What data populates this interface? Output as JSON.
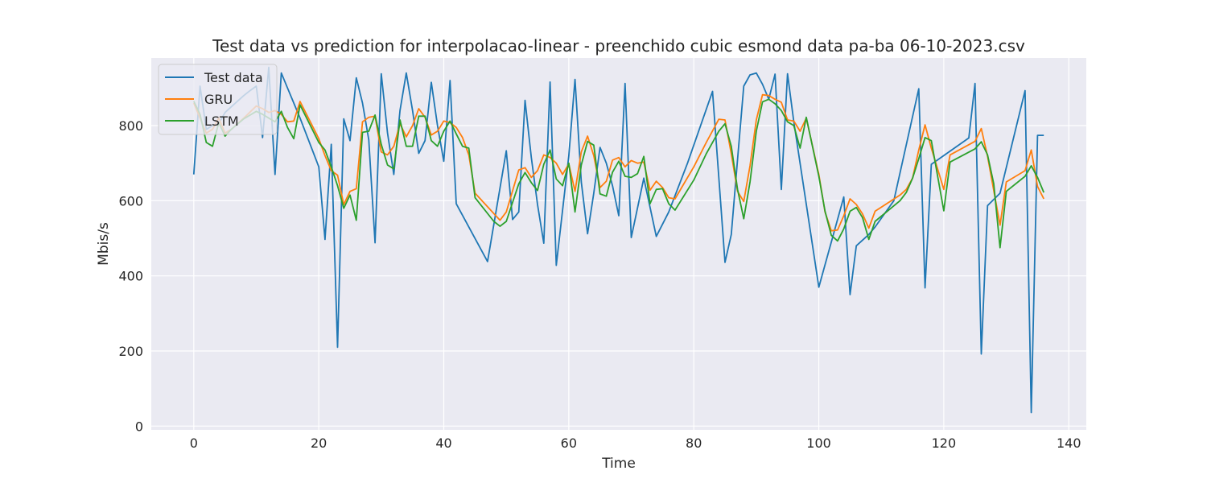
{
  "chart_data": {
    "type": "line",
    "title": "Test data vs prediction for interpolacao-linear - preenchido cubic esmond data pa-ba 06-10-2023.csv",
    "xlabel": "Time",
    "ylabel": "Mbis/s",
    "xlim": [
      -6.8,
      142.8
    ],
    "ylim": [
      -10,
      980
    ],
    "xticks": [
      0,
      20,
      40,
      60,
      80,
      100,
      120,
      140
    ],
    "yticks": [
      0,
      200,
      400,
      600,
      800
    ],
    "grid": true,
    "legend_position": "top-left",
    "series": [
      {
        "name": "Test data",
        "color": "#1f77b4",
        "points": [
          [
            0,
            670
          ],
          [
            1,
            905
          ],
          [
            2,
            790
          ],
          [
            3,
            800
          ],
          [
            4,
            805
          ],
          [
            5,
            835
          ],
          [
            6,
            850
          ],
          [
            7,
            865
          ],
          [
            8,
            880
          ],
          [
            9,
            893
          ],
          [
            10,
            905
          ],
          [
            11,
            768
          ],
          [
            12,
            955
          ],
          [
            13,
            670
          ],
          [
            14,
            940
          ],
          [
            15,
            900
          ],
          [
            16,
            860
          ],
          [
            17,
            820
          ],
          [
            20,
            690
          ],
          [
            21,
            497
          ],
          [
            22,
            750
          ],
          [
            23,
            210
          ],
          [
            24,
            818
          ],
          [
            25,
            760
          ],
          [
            26,
            927
          ],
          [
            27,
            860
          ],
          [
            28,
            762
          ],
          [
            29,
            488
          ],
          [
            30,
            938
          ],
          [
            31,
            780
          ],
          [
            32,
            670
          ],
          [
            33,
            840
          ],
          [
            34,
            940
          ],
          [
            35,
            840
          ],
          [
            36,
            726
          ],
          [
            37,
            760
          ],
          [
            38,
            915
          ],
          [
            39,
            800
          ],
          [
            40,
            705
          ],
          [
            41,
            920
          ],
          [
            42,
            592
          ],
          [
            47,
            438
          ],
          [
            50,
            733
          ],
          [
            51,
            550
          ],
          [
            52,
            570
          ],
          [
            53,
            867
          ],
          [
            54,
            715
          ],
          [
            55,
            590
          ],
          [
            56,
            487
          ],
          [
            57,
            916
          ],
          [
            58,
            428
          ],
          [
            60,
            720
          ],
          [
            61,
            923
          ],
          [
            62,
            650
          ],
          [
            63,
            512
          ],
          [
            64,
            620
          ],
          [
            65,
            742
          ],
          [
            66,
            700
          ],
          [
            67,
            640
          ],
          [
            68,
            560
          ],
          [
            69,
            912
          ],
          [
            70,
            502
          ],
          [
            72,
            660
          ],
          [
            74,
            505
          ],
          [
            76,
            570
          ],
          [
            79,
            700
          ],
          [
            83,
            891
          ],
          [
            85,
            436
          ],
          [
            86,
            510
          ],
          [
            87,
            710
          ],
          [
            88,
            905
          ],
          [
            89,
            935
          ],
          [
            90,
            940
          ],
          [
            91,
            910
          ],
          [
            92,
            870
          ],
          [
            93,
            937
          ],
          [
            94,
            630
          ],
          [
            95,
            938
          ],
          [
            96,
            810
          ],
          [
            100,
            370
          ],
          [
            104,
            610
          ],
          [
            105,
            350
          ],
          [
            106,
            480
          ],
          [
            108,
            510
          ],
          [
            109,
            530
          ],
          [
            112,
            600
          ],
          [
            116,
            898
          ],
          [
            117,
            368
          ],
          [
            118,
            697
          ],
          [
            124,
            767
          ],
          [
            125,
            912
          ],
          [
            126,
            192
          ],
          [
            127,
            587
          ],
          [
            129,
            620
          ],
          [
            133,
            893
          ],
          [
            134,
            36
          ],
          [
            135,
            774
          ],
          [
            136,
            774
          ]
        ]
      },
      {
        "name": "GRU",
        "color": "#ff7f0e",
        "points": [
          [
            0,
            860
          ],
          [
            2,
            780
          ],
          [
            3,
            790
          ],
          [
            4,
            820
          ],
          [
            5,
            780
          ],
          [
            6,
            790
          ],
          [
            8,
            820
          ],
          [
            10,
            852
          ],
          [
            11,
            845
          ],
          [
            12,
            835
          ],
          [
            13,
            840
          ],
          [
            14,
            830
          ],
          [
            15,
            810
          ],
          [
            16,
            812
          ],
          [
            17,
            864
          ],
          [
            20,
            765
          ],
          [
            21,
            720
          ],
          [
            22,
            680
          ],
          [
            23,
            668
          ],
          [
            24,
            590
          ],
          [
            25,
            625
          ],
          [
            26,
            632
          ],
          [
            27,
            810
          ],
          [
            28,
            822
          ],
          [
            29,
            825
          ],
          [
            30,
            730
          ],
          [
            31,
            722
          ],
          [
            32,
            745
          ],
          [
            33,
            805
          ],
          [
            34,
            770
          ],
          [
            35,
            800
          ],
          [
            36,
            845
          ],
          [
            37,
            822
          ],
          [
            38,
            775
          ],
          [
            39,
            785
          ],
          [
            40,
            812
          ],
          [
            41,
            808
          ],
          [
            42,
            795
          ],
          [
            43,
            768
          ],
          [
            44,
            722
          ],
          [
            45,
            620
          ],
          [
            49,
            548
          ],
          [
            50,
            570
          ],
          [
            52,
            682
          ],
          [
            53,
            688
          ],
          [
            54,
            662
          ],
          [
            55,
            680
          ],
          [
            56,
            722
          ],
          [
            57,
            715
          ],
          [
            58,
            700
          ],
          [
            59,
            670
          ],
          [
            60,
            698
          ],
          [
            61,
            625
          ],
          [
            62,
            730
          ],
          [
            63,
            772
          ],
          [
            64,
            720
          ],
          [
            65,
            635
          ],
          [
            66,
            652
          ],
          [
            67,
            708
          ],
          [
            68,
            715
          ],
          [
            69,
            690
          ],
          [
            70,
            707
          ],
          [
            71,
            700
          ],
          [
            72,
            703
          ],
          [
            73,
            628
          ],
          [
            74,
            652
          ],
          [
            75,
            635
          ],
          [
            76,
            608
          ],
          [
            77,
            605
          ],
          [
            80,
            690
          ],
          [
            82,
            755
          ],
          [
            84,
            817
          ],
          [
            85,
            815
          ],
          [
            86,
            725
          ],
          [
            87,
            625
          ],
          [
            88,
            598
          ],
          [
            89,
            693
          ],
          [
            90,
            815
          ],
          [
            91,
            882
          ],
          [
            92,
            880
          ],
          [
            93,
            870
          ],
          [
            94,
            862
          ],
          [
            95,
            815
          ],
          [
            96,
            812
          ],
          [
            97,
            785
          ],
          [
            98,
            820
          ],
          [
            100,
            670
          ],
          [
            101,
            570
          ],
          [
            102,
            520
          ],
          [
            103,
            522
          ],
          [
            104,
            560
          ],
          [
            105,
            605
          ],
          [
            106,
            590
          ],
          [
            107,
            565
          ],
          [
            108,
            527
          ],
          [
            109,
            572
          ],
          [
            113,
            615
          ],
          [
            114,
            630
          ],
          [
            115,
            660
          ],
          [
            116,
            735
          ],
          [
            117,
            802
          ],
          [
            118,
            740
          ],
          [
            120,
            630
          ],
          [
            121,
            722
          ],
          [
            125,
            758
          ],
          [
            126,
            792
          ],
          [
            127,
            718
          ],
          [
            129,
            535
          ],
          [
            130,
            650
          ],
          [
            133,
            680
          ],
          [
            134,
            735
          ],
          [
            135,
            638
          ],
          [
            136,
            605
          ]
        ]
      },
      {
        "name": "LSTM",
        "color": "#2ca02c",
        "points": [
          [
            0,
            865
          ],
          [
            1,
            830
          ],
          [
            2,
            755
          ],
          [
            3,
            745
          ],
          [
            4,
            808
          ],
          [
            5,
            772
          ],
          [
            6,
            790
          ],
          [
            8,
            818
          ],
          [
            10,
            838
          ],
          [
            11,
            830
          ],
          [
            12,
            820
          ],
          [
            13,
            810
          ],
          [
            14,
            838
          ],
          [
            15,
            795
          ],
          [
            16,
            765
          ],
          [
            17,
            855
          ],
          [
            20,
            755
          ],
          [
            21,
            735
          ],
          [
            22,
            690
          ],
          [
            23,
            640
          ],
          [
            24,
            580
          ],
          [
            25,
            615
          ],
          [
            26,
            548
          ],
          [
            27,
            782
          ],
          [
            28,
            785
          ],
          [
            29,
            828
          ],
          [
            30,
            750
          ],
          [
            31,
            695
          ],
          [
            32,
            685
          ],
          [
            33,
            815
          ],
          [
            34,
            745
          ],
          [
            35,
            745
          ],
          [
            36,
            825
          ],
          [
            37,
            825
          ],
          [
            38,
            760
          ],
          [
            39,
            745
          ],
          [
            40,
            785
          ],
          [
            41,
            812
          ],
          [
            42,
            778
          ],
          [
            43,
            745
          ],
          [
            44,
            740
          ],
          [
            45,
            608
          ],
          [
            48,
            545
          ],
          [
            49,
            532
          ],
          [
            50,
            545
          ],
          [
            52,
            645
          ],
          [
            53,
            675
          ],
          [
            54,
            648
          ],
          [
            55,
            627
          ],
          [
            56,
            697
          ],
          [
            57,
            735
          ],
          [
            58,
            658
          ],
          [
            59,
            640
          ],
          [
            60,
            700
          ],
          [
            61,
            570
          ],
          [
            62,
            695
          ],
          [
            63,
            758
          ],
          [
            64,
            748
          ],
          [
            65,
            618
          ],
          [
            66,
            612
          ],
          [
            67,
            676
          ],
          [
            68,
            705
          ],
          [
            69,
            665
          ],
          [
            70,
            662
          ],
          [
            71,
            672
          ],
          [
            72,
            718
          ],
          [
            73,
            592
          ],
          [
            74,
            630
          ],
          [
            75,
            632
          ],
          [
            76,
            592
          ],
          [
            77,
            575
          ],
          [
            80,
            655
          ],
          [
            82,
            725
          ],
          [
            84,
            785
          ],
          [
            85,
            805
          ],
          [
            86,
            745
          ],
          [
            87,
            630
          ],
          [
            88,
            552
          ],
          [
            89,
            650
          ],
          [
            90,
            785
          ],
          [
            91,
            863
          ],
          [
            92,
            870
          ],
          [
            93,
            858
          ],
          [
            94,
            840
          ],
          [
            95,
            810
          ],
          [
            96,
            800
          ],
          [
            97,
            740
          ],
          [
            98,
            822
          ],
          [
            100,
            665
          ],
          [
            101,
            572
          ],
          [
            102,
            508
          ],
          [
            103,
            493
          ],
          [
            104,
            525
          ],
          [
            105,
            572
          ],
          [
            106,
            582
          ],
          [
            107,
            555
          ],
          [
            108,
            497
          ],
          [
            109,
            545
          ],
          [
            113,
            600
          ],
          [
            114,
            622
          ],
          [
            115,
            660
          ],
          [
            116,
            712
          ],
          [
            117,
            768
          ],
          [
            118,
            760
          ],
          [
            120,
            573
          ],
          [
            121,
            703
          ],
          [
            125,
            738
          ],
          [
            126,
            757
          ],
          [
            127,
            722
          ],
          [
            128,
            645
          ],
          [
            129,
            475
          ],
          [
            130,
            625
          ],
          [
            133,
            665
          ],
          [
            134,
            693
          ],
          [
            135,
            662
          ],
          [
            136,
            622
          ]
        ]
      }
    ]
  }
}
